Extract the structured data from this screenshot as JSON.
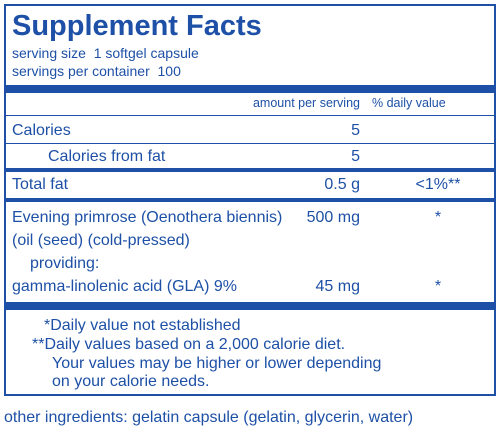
{
  "title": "Supplement Facts",
  "serving": [
    "serving size  1 softgel capsule",
    "servings per container  100"
  ],
  "table": {
    "header": [
      "amount per serving",
      "% daily value"
    ],
    "rows": [
      [
        "Calories",
        "5"
      ],
      [
        "Calories from fat",
        "5"
      ],
      [
        "Total fat",
        "0.5 g",
        "<1%**"
      ],
      [
        "Evening primrose (Oenothera biennis)",
        "500 mg",
        "*"
      ],
      [
        "(oil (seed) (cold-pressed)"
      ],
      [
        "providing:"
      ],
      [
        "gamma-linolenic acid (GLA) 9%",
        "45 mg",
        "*"
      ]
    ]
  },
  "footnotes": [
    "*Daily value not established",
    "**Daily values based on a 2,000 calorie diet.",
    "Your values may be higher or lower depending",
    "on your calorie needs."
  ],
  "other_ingredients": "other ingredients: gelatin capsule (gelatin, glycerin, water)"
}
